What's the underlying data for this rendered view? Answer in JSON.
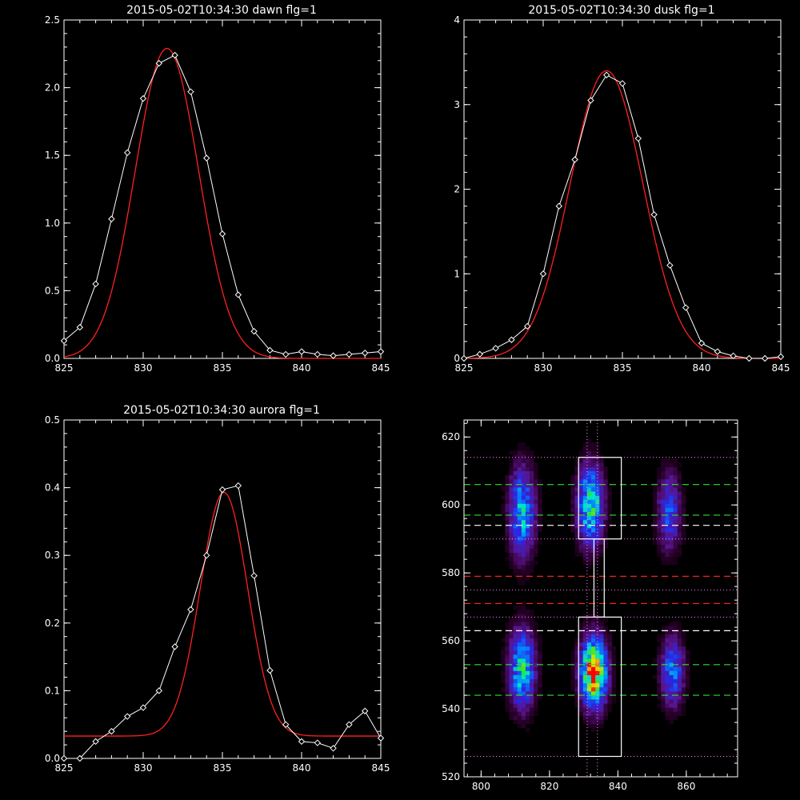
{
  "colors": {
    "background": "#000000",
    "axes": "#ffffff",
    "observed": "#ffffff",
    "fit": "#ff2020",
    "green_dash": "#33dd33",
    "red_dash": "#ee2222",
    "white_dash": "#ffffff",
    "magenta_dot": "#ff88ff"
  },
  "chart_data": [
    {
      "type": "line",
      "title": "2015-05-02T10:34:30 dawn flg=1",
      "xlim": [
        825,
        845
      ],
      "ylim": [
        0,
        2.5
      ],
      "xticks": [
        825,
        830,
        835,
        840,
        845
      ],
      "yticks": [
        0.0,
        0.5,
        1.0,
        1.5,
        2.0,
        2.5
      ],
      "xtick_labels": [
        "825",
        "830",
        "835",
        "840",
        "845"
      ],
      "ytick_labels": [
        "0.0",
        "0.5",
        "1.0",
        "1.5",
        "2.0",
        "2.5"
      ],
      "series": [
        {
          "role": "observed",
          "marker": "diamond",
          "x": [
            825,
            826,
            827,
            828,
            829,
            830,
            831,
            832,
            833,
            834,
            835,
            836,
            837,
            838,
            839,
            840,
            841,
            842,
            843,
            844,
            845
          ],
          "y": [
            0.13,
            0.23,
            0.55,
            1.03,
            1.52,
            1.92,
            2.18,
            2.24,
            1.97,
            1.48,
            0.92,
            0.47,
            0.2,
            0.06,
            0.03,
            0.05,
            0.03,
            0.02,
            0.03,
            0.04,
            0.05
          ]
        },
        {
          "role": "fit",
          "model": "gaussian",
          "amplitude": 2.29,
          "center": 831.5,
          "sigma": 2.0,
          "offset": 0.0
        }
      ]
    },
    {
      "type": "line",
      "title": "2015-05-02T10:34:30 dusk flg=1",
      "xlim": [
        825,
        845
      ],
      "ylim": [
        0,
        4
      ],
      "xticks": [
        825,
        830,
        835,
        840,
        845
      ],
      "yticks": [
        0,
        1,
        2,
        3,
        4
      ],
      "xtick_labels": [
        "825",
        "830",
        "835",
        "840",
        "845"
      ],
      "ytick_labels": [
        "0",
        "1",
        "2",
        "3",
        "4"
      ],
      "series": [
        {
          "role": "observed",
          "marker": "diamond",
          "x": [
            825,
            826,
            827,
            828,
            829,
            830,
            831,
            832,
            833,
            834,
            835,
            836,
            837,
            838,
            839,
            840,
            841,
            842,
            843,
            844,
            845
          ],
          "y": [
            0.0,
            0.05,
            0.12,
            0.22,
            0.38,
            1.0,
            1.8,
            2.35,
            3.05,
            3.35,
            3.25,
            2.6,
            1.7,
            1.1,
            0.6,
            0.18,
            0.08,
            0.03,
            0.0,
            0.0,
            0.02
          ]
        },
        {
          "role": "fit",
          "model": "gaussian",
          "amplitude": 3.4,
          "center": 834.0,
          "sigma": 2.3,
          "offset": 0.0
        }
      ]
    },
    {
      "type": "line",
      "title": "2015-05-02T10:34:30 aurora flg=1",
      "xlim": [
        825,
        845
      ],
      "ylim": [
        0,
        0.5
      ],
      "xticks": [
        825,
        830,
        835,
        840,
        845
      ],
      "yticks": [
        0.0,
        0.1,
        0.2,
        0.3,
        0.4,
        0.5
      ],
      "xtick_labels": [
        "825",
        "830",
        "835",
        "840",
        "845"
      ],
      "ytick_labels": [
        "0.0",
        "0.1",
        "0.2",
        "0.3",
        "0.4",
        "0.5"
      ],
      "series": [
        {
          "role": "observed",
          "marker": "diamond",
          "x": [
            825,
            826,
            827,
            828,
            829,
            830,
            831,
            832,
            833,
            834,
            835,
            836,
            837,
            838,
            839,
            840,
            841,
            842,
            843,
            844,
            845
          ],
          "y": [
            0.0,
            -0.005,
            0.025,
            0.04,
            0.062,
            0.075,
            0.1,
            0.165,
            0.22,
            0.3,
            0.397,
            0.403,
            0.27,
            0.13,
            0.05,
            0.025,
            0.023,
            0.015,
            0.05,
            0.07,
            0.03
          ]
        },
        {
          "role": "fit",
          "model": "gaussian",
          "amplitude": 0.36,
          "center": 835.1,
          "sigma": 1.5,
          "offset": 0.033
        }
      ]
    },
    {
      "type": "heatmap",
      "xlim": [
        795,
        875
      ],
      "ylim": [
        520,
        625
      ],
      "xticks": [
        800,
        820,
        840,
        860
      ],
      "yticks": [
        520,
        540,
        560,
        580,
        600,
        620
      ],
      "xtick_labels": [
        "800",
        "820",
        "840",
        "860"
      ],
      "ytick_labels": [
        "520",
        "540",
        "560",
        "580",
        "600",
        "620"
      ],
      "colormap": "rainbow-on-black",
      "sources": [
        {
          "x": 812,
          "y": 598,
          "sx": 2.6,
          "sy": 9,
          "peak": 0.55
        },
        {
          "x": 832,
          "y": 600,
          "sx": 2.6,
          "sy": 8,
          "peak": 0.68
        },
        {
          "x": 855,
          "y": 598,
          "sx": 2.4,
          "sy": 8,
          "peak": 0.38
        },
        {
          "x": 812,
          "y": 552,
          "sx": 2.6,
          "sy": 8,
          "peak": 0.62
        },
        {
          "x": 833,
          "y": 551,
          "sx": 2.6,
          "sy": 7,
          "peak": 1.0
        },
        {
          "x": 856,
          "y": 551,
          "sx": 2.4,
          "sy": 7,
          "peak": 0.45
        }
      ],
      "overlays": {
        "boxes": [
          {
            "x0": 828.5,
            "x1": 841,
            "y0": 590,
            "y1": 614
          },
          {
            "x0": 828.5,
            "x1": 841,
            "y0": 526,
            "y1": 567
          },
          {
            "x0": 833,
            "x1": 836,
            "y0": 567,
            "y1": 590
          }
        ],
        "green_dashed_y": [
          606,
          597,
          553,
          544
        ],
        "white_dashed_y": [
          594,
          563
        ],
        "red_dashed_y": [
          579,
          571
        ],
        "magenta_dotted_y": [
          614,
          590,
          575,
          567,
          526
        ],
        "magenta_dotted_x": [
          831,
          834
        ]
      }
    }
  ]
}
